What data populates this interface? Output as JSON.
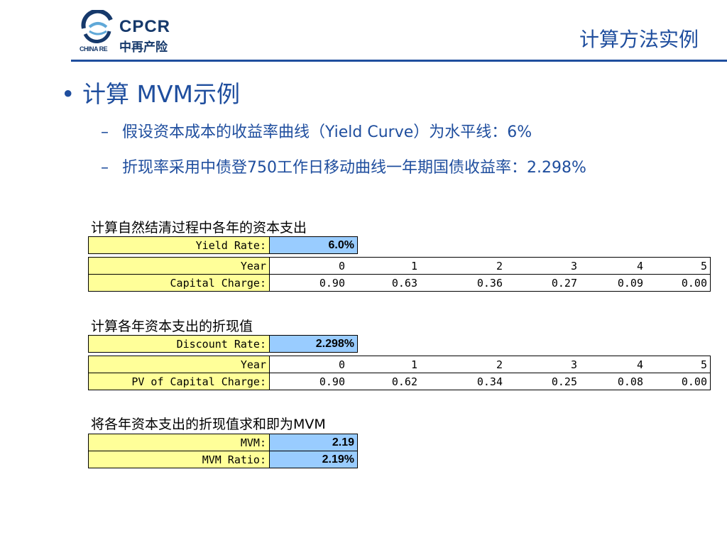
{
  "header": {
    "logo": {
      "brand": "CPCR",
      "name_cn": "中再产险",
      "sub": "CHINA RE"
    },
    "title": "计算方法实例"
  },
  "bullet": {
    "text": "计算 MVM示例"
  },
  "sub_items": [
    "假设资本成本的收益率曲线（Yield Curve）为水平线：6%",
    "折现率采用中债登750工作日移动曲线一年期国债收益率：2.298%"
  ],
  "table1": {
    "caption": "计算自然结清过程中各年的资本支出",
    "rate_label": "Yield Rate:",
    "rate_value": "6.0%",
    "year_label": "Year",
    "years": [
      "0",
      "1",
      "2",
      "3",
      "4",
      "5"
    ],
    "row_label": "Capital Charge:",
    "values": [
      "0.90",
      "0.63",
      "0.36",
      "0.27",
      "0.09",
      "0.00"
    ]
  },
  "table2": {
    "caption": "计算各年资本支出的折现值",
    "rate_label": "Discount Rate:",
    "rate_value": "2.298%",
    "year_label": "Year",
    "years": [
      "0",
      "1",
      "2",
      "3",
      "4",
      "5"
    ],
    "row_label": "PV of Capital Charge:",
    "values": [
      "0.90",
      "0.62",
      "0.34",
      "0.25",
      "0.08",
      "0.00"
    ]
  },
  "table3": {
    "caption": "将各年资本支出的折现值求和即为MVM",
    "rows": [
      {
        "label": "MVM:",
        "value": "2.19"
      },
      {
        "label": "MVM Ratio:",
        "value": "2.19%"
      }
    ]
  },
  "colors": {
    "accent": "#1f4e9e",
    "label_bg": "#ffff99",
    "input_bg": "#99ccff"
  }
}
